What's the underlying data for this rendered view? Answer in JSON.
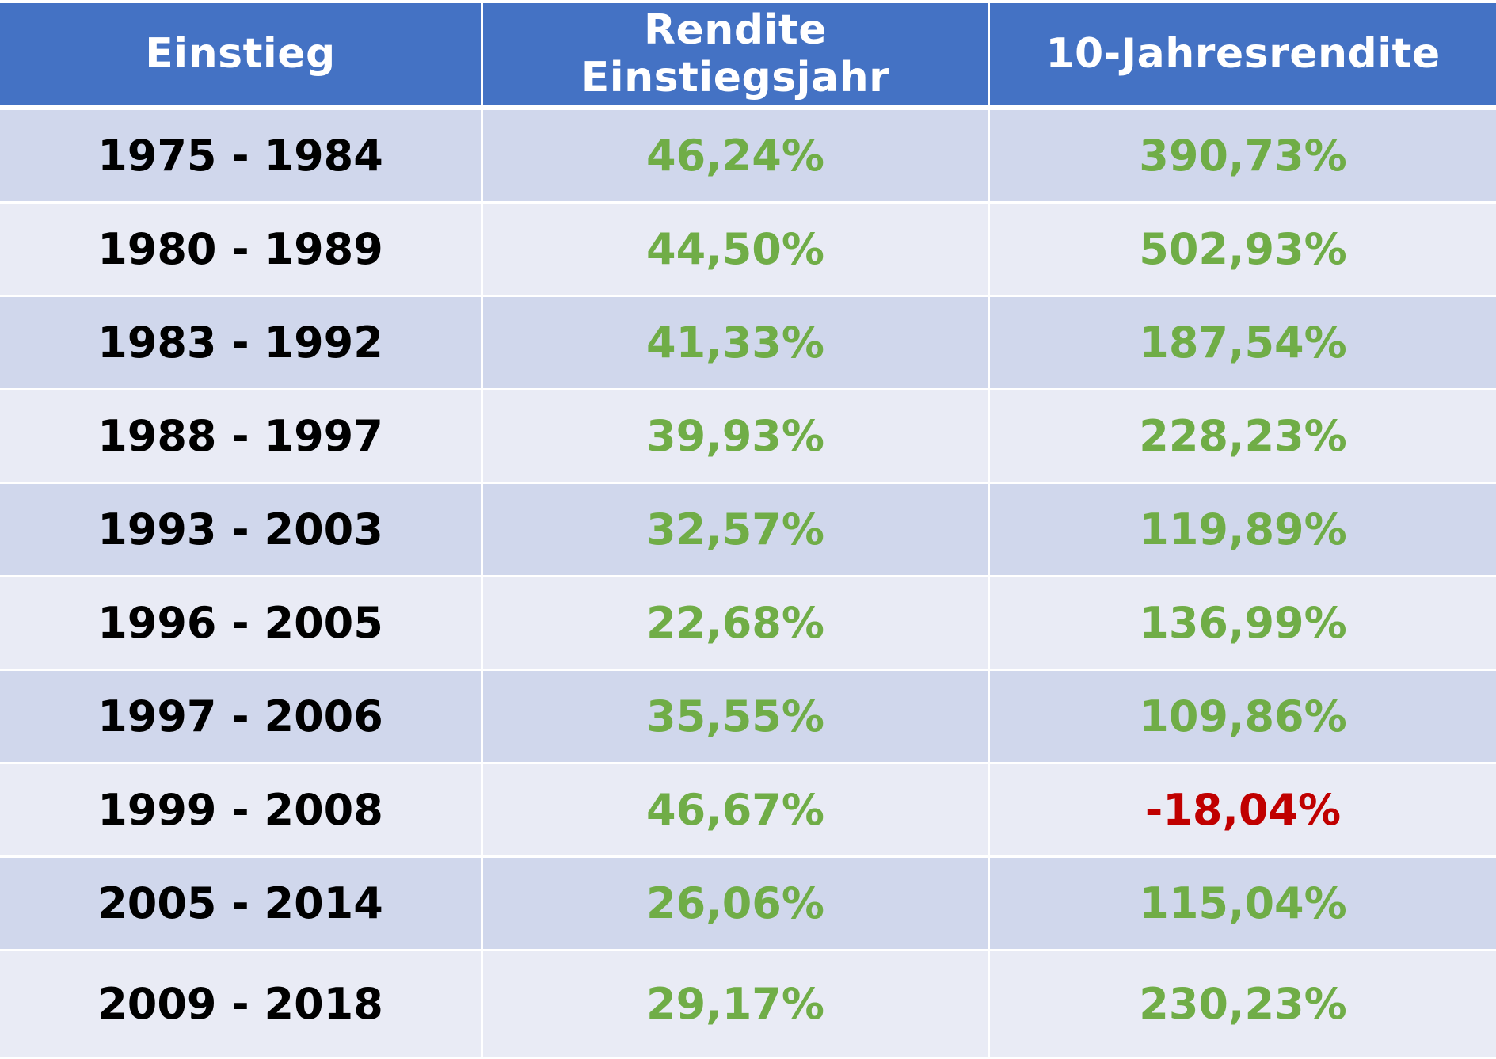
{
  "headers": {
    "col1": "Einstieg",
    "col2": "Rendite Einstiegsjahr",
    "col3": "10-Jahresrendite"
  },
  "rows": [
    {
      "period": "1975 - 1984",
      "entry_return": "46,24%",
      "ten_year_return": "390,73%",
      "ten_year_negative": false
    },
    {
      "period": "1980 - 1989",
      "entry_return": "44,50%",
      "ten_year_return": "502,93%",
      "ten_year_negative": false
    },
    {
      "period": "1983 - 1992",
      "entry_return": "41,33%",
      "ten_year_return": "187,54%",
      "ten_year_negative": false
    },
    {
      "period": "1988 - 1997",
      "entry_return": "39,93%",
      "ten_year_return": "228,23%",
      "ten_year_negative": false
    },
    {
      "period": "1993 - 2003",
      "entry_return": "32,57%",
      "ten_year_return": "119,89%",
      "ten_year_negative": false
    },
    {
      "period": "1996 - 2005",
      "entry_return": "22,68%",
      "ten_year_return": "136,99%",
      "ten_year_negative": false
    },
    {
      "period": "1997 - 2006",
      "entry_return": "35,55%",
      "ten_year_return": "109,86%",
      "ten_year_negative": false
    },
    {
      "period": "1999 - 2008",
      "entry_return": "46,67%",
      "ten_year_return": "-18,04%",
      "ten_year_negative": true
    },
    {
      "period": "2005 - 2014",
      "entry_return": "26,06%",
      "ten_year_return": "115,04%",
      "ten_year_negative": false
    },
    {
      "period": "2009 - 2018",
      "entry_return": "29,17%",
      "ten_year_return": "230,23%",
      "ten_year_negative": false
    }
  ],
  "colors": {
    "header_bg": "#4472c4",
    "row_dark": "#d0d7ec",
    "row_light": "#e9ebf5",
    "positive": "#70ad47",
    "negative": "#c00000"
  }
}
